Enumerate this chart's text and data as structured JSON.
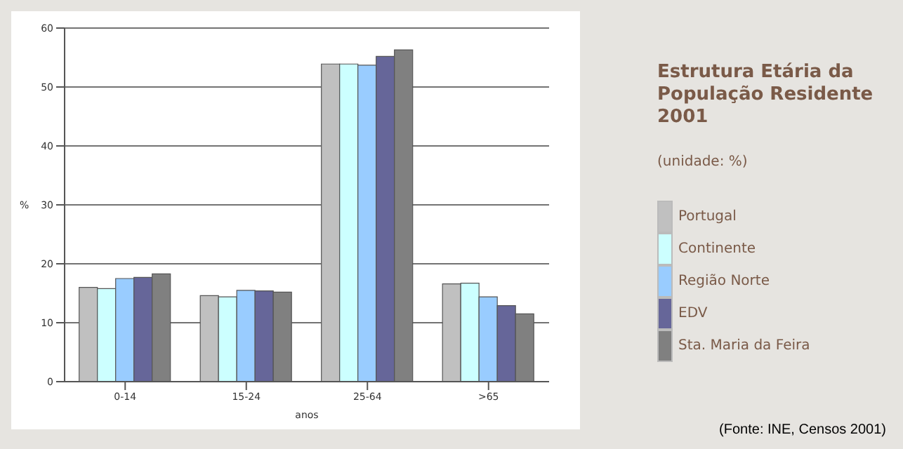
{
  "chart_data": {
    "type": "bar",
    "title": "Estrutura Etária da População Residente 2001",
    "subtitle": "(unidade: %)",
    "xlabel": "anos",
    "ylabel": "%",
    "categories": [
      "0-14",
      "15-24",
      "25-64",
      ">65"
    ],
    "series": [
      {
        "name": "Portugal",
        "color": "#c0c0c0",
        "values": [
          16,
          14.6,
          53.9,
          16.6
        ]
      },
      {
        "name": "Continente",
        "color": "#ccffff",
        "values": [
          15.8,
          14.4,
          53.9,
          16.7
        ]
      },
      {
        "name": "Região Norte",
        "color": "#99ccff",
        "values": [
          17.5,
          15.5,
          53.7,
          14.4
        ]
      },
      {
        "name": "EDV",
        "color": "#666699",
        "values": [
          17.7,
          15.4,
          55.2,
          12.9
        ]
      },
      {
        "name": "Sta. Maria da Feira",
        "color": "#808080",
        "values": [
          18.3,
          15.2,
          56.3,
          11.5
        ]
      }
    ],
    "ylim": [
      0,
      60
    ],
    "yticks": [
      0,
      10,
      20,
      30,
      40,
      50,
      60
    ],
    "grid": "y",
    "legend": "right",
    "annotations": [
      "(Fonte: INE, Censos 2001)"
    ]
  }
}
